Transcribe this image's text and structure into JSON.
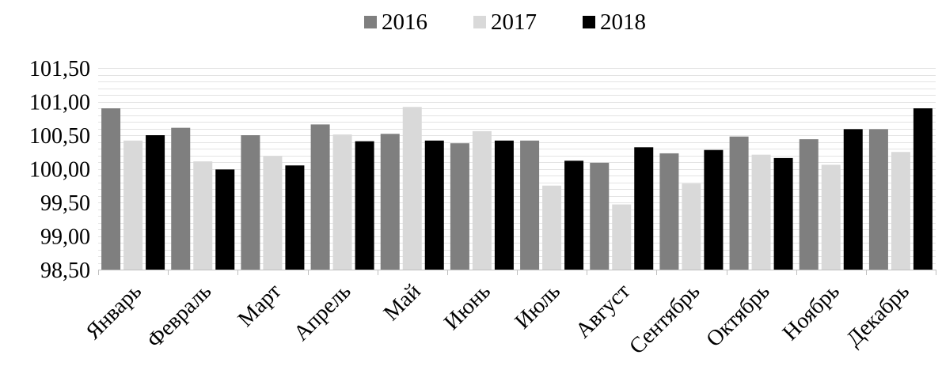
{
  "chart_data": {
    "type": "bar",
    "categories": [
      "Январь",
      "Февраль",
      "Март",
      "Апрель",
      "Май",
      "Июнь",
      "Июль",
      "Август",
      "Сентябрь",
      "Октябрь",
      "Ноябрь",
      "Декабрь"
    ],
    "series": [
      {
        "name": "2016",
        "color": "#7f7f7f",
        "values": [
          100.9,
          100.61,
          100.5,
          100.66,
          100.52,
          100.38,
          100.42,
          100.09,
          100.23,
          100.48,
          100.44,
          100.59
        ]
      },
      {
        "name": "2017",
        "color": "#d9d9d9",
        "values": [
          100.42,
          100.11,
          100.19,
          100.51,
          100.92,
          100.56,
          99.75,
          99.47,
          99.78,
          100.21,
          100.06,
          100.25
        ]
      },
      {
        "name": "2018",
        "color": "#000000",
        "values": [
          100.5,
          99.99,
          100.05,
          100.41,
          100.42,
          100.42,
          100.12,
          100.32,
          100.28,
          100.16,
          100.59,
          100.9
        ]
      }
    ],
    "ylim": [
      98.5,
      101.5
    ],
    "y_ticks": [
      "98,50",
      "99,00",
      "99,50",
      "100,00",
      "100,50",
      "101,00",
      "101,50"
    ],
    "y_tick_values": [
      98.5,
      99.0,
      99.5,
      100.0,
      100.5,
      101.0,
      101.5
    ],
    "title": "",
    "xlabel": "",
    "ylabel": "",
    "grid": true,
    "legend_position": "top"
  }
}
